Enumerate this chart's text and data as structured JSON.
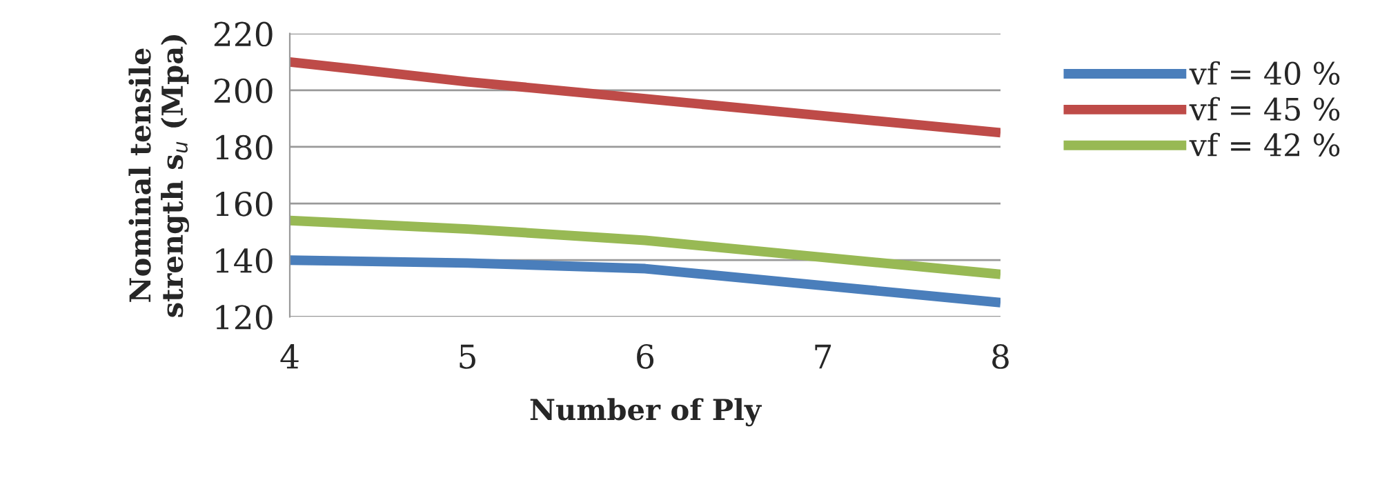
{
  "chart_data": {
    "type": "line",
    "xlabel": "Number of Ply",
    "ylabel": "Nominal tensile\nstrength s$_{u}$ (Mpa)",
    "x": [
      4,
      5,
      6,
      7,
      8
    ],
    "series": [
      {
        "name": "vf = 40 %",
        "color": "#4a7ebb",
        "values": [
          140,
          139,
          137,
          131,
          125
        ]
      },
      {
        "name": "vf = 45 %",
        "color": "#be4b48",
        "values": [
          210,
          203,
          197,
          191,
          185
        ]
      },
      {
        "name": "vf = 42 %",
        "color": "#98b954",
        "values": [
          154,
          151,
          147,
          141,
          135
        ]
      }
    ],
    "xlim": [
      4,
      8
    ],
    "xticks": [
      4,
      5,
      6,
      7,
      8
    ],
    "ylim": [
      120,
      220
    ],
    "yticks": [
      120,
      140,
      160,
      180,
      200,
      220
    ],
    "grid": "y",
    "legend": "right",
    "line_style": "solid",
    "marker": "none"
  }
}
